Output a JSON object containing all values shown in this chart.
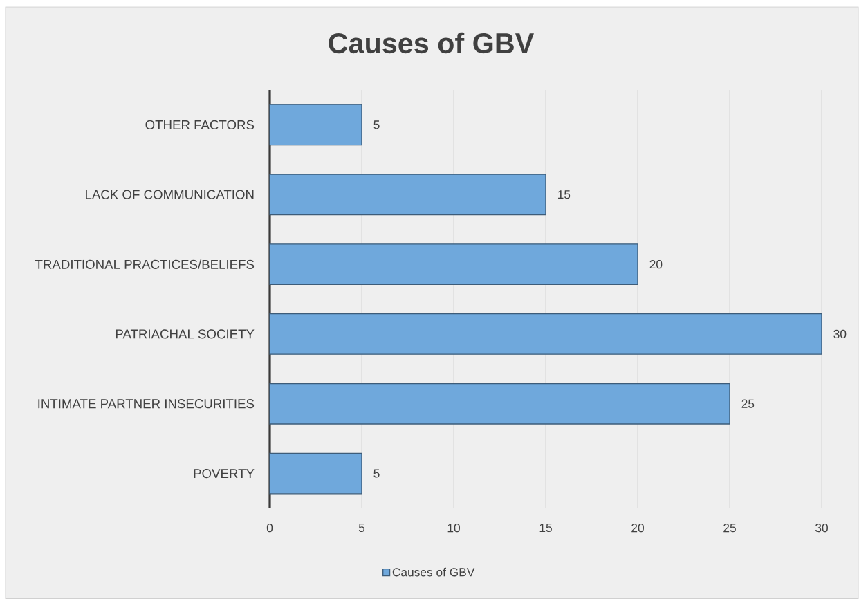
{
  "chart_data": {
    "type": "bar",
    "orientation": "horizontal",
    "title": "Causes of GBV",
    "categories": [
      "OTHER FACTORS",
      "LACK OF COMMUNICATION",
      "TRADITIONAL PRACTICES/BELIEFS",
      "PATRIACHAL SOCIETY",
      "INTIMATE PARTNER INSECURITIES",
      "POVERTY"
    ],
    "series": [
      {
        "name": "Causes of GBV",
        "color": "#6fa8dc",
        "values": [
          5,
          15,
          20,
          30,
          25,
          5
        ]
      }
    ],
    "xlim": [
      0,
      30
    ],
    "xticks": [
      0,
      5,
      10,
      15,
      20,
      25,
      30
    ],
    "grid": "x",
    "legend": "bottom",
    "data_labels": true
  }
}
